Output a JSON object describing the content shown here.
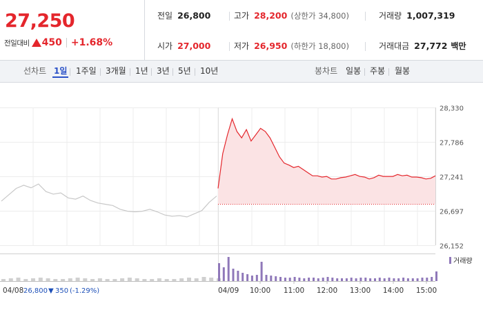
{
  "summary": {
    "price": "27,250",
    "change_label": "전일대비",
    "change_value": "450",
    "change_rate": "+1.68%",
    "prev_close_label": "전일",
    "prev_close": "26,800",
    "high_label": "고가",
    "high": "28,200",
    "upper_limit": "(상한가 34,800)",
    "volume_label": "거래량",
    "volume": "1,007,319",
    "open_label": "시가",
    "open": "27,000",
    "low_label": "저가",
    "low": "26,950",
    "lower_limit": "(하한가 18,800)",
    "amount_label": "거래대금",
    "amount": "27,772",
    "amount_unit": "백만"
  },
  "tabs": {
    "line_label": "선차트",
    "periods": [
      "1일",
      "1주일",
      "3개월",
      "1년",
      "3년",
      "5년",
      "10년"
    ],
    "active_period": "1일",
    "candle_label": "봉차트",
    "candles": [
      "일봉",
      "주봉",
      "월봉"
    ]
  },
  "colors": {
    "up": "#e4262c",
    "down": "#1c4fb8",
    "active_tab": "#2a51c7",
    "prev_day_line": "#c8c8c8",
    "volume_bar": "#8f78b9"
  },
  "chart_data": {
    "type": "line",
    "y_ticks": [
      "28,330",
      "27,786",
      "27,241",
      "26,697",
      "26,152"
    ],
    "ylim": [
      26152,
      28330
    ],
    "base_price": 26800,
    "prev_day": {
      "date": "04/08",
      "close": "26,800",
      "change": "350",
      "rate": "(-1.29%)",
      "points": [
        26850,
        26950,
        27050,
        27100,
        27060,
        27120,
        27000,
        26960,
        26980,
        26900,
        26880,
        26930,
        26860,
        26820,
        26800,
        26780,
        26720,
        26690,
        26680,
        26690,
        26720,
        26680,
        26630,
        26610,
        26620,
        26600,
        26650,
        26700,
        26830,
        26930
      ]
    },
    "today": {
      "date": "04/09",
      "x_times": [
        "10:00",
        "11:00",
        "12:00",
        "13:00",
        "14:00",
        "15:00"
      ],
      "points": [
        27050,
        27600,
        27900,
        28150,
        27950,
        27850,
        27980,
        27800,
        27900,
        28000,
        27950,
        27850,
        27700,
        27550,
        27450,
        27420,
        27380,
        27400,
        27350,
        27300,
        27250,
        27250,
        27230,
        27240,
        27200,
        27200,
        27220,
        27230,
        27250,
        27270,
        27240,
        27230,
        27200,
        27220,
        27260,
        27240,
        27240,
        27240,
        27270,
        27250,
        27260,
        27230,
        27230,
        27220,
        27200,
        27210,
        27250
      ]
    },
    "volume_legend": "거래량",
    "volumes_prev": [
      3,
      4,
      5,
      3,
      4,
      5,
      4,
      3,
      3,
      4,
      5,
      4,
      3,
      4,
      3,
      3,
      4,
      5,
      4,
      3,
      3,
      4,
      3,
      3,
      4,
      5,
      4,
      6,
      5,
      4
    ],
    "volumes_today": [
      26,
      20,
      35,
      18,
      15,
      12,
      10,
      8,
      9,
      28,
      9,
      8,
      7,
      6,
      5,
      5,
      6,
      5,
      4,
      5,
      5,
      4,
      5,
      6,
      5,
      4,
      4,
      4,
      5,
      4,
      5,
      5,
      4,
      4,
      5,
      4,
      5,
      4,
      4,
      5,
      4,
      4,
      4,
      5,
      5,
      6,
      14
    ]
  }
}
